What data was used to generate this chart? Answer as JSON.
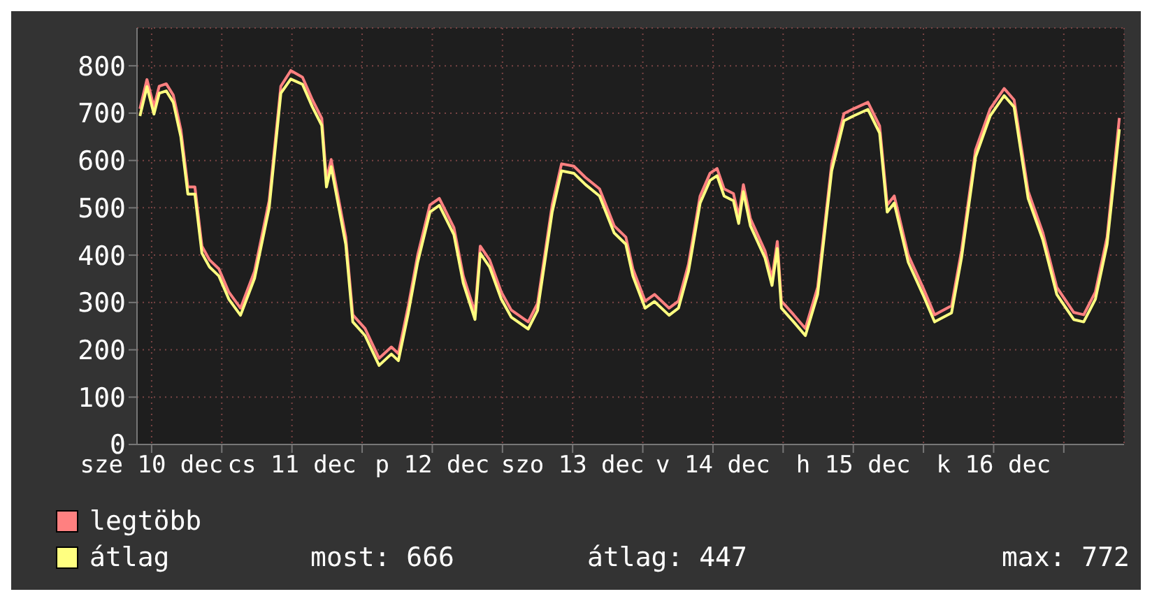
{
  "chart_data": {
    "type": "line",
    "x": [
      "--12-10T10:00",
      "--12-10T11:12",
      "--12-10T12:24",
      "--12-10T13:18",
      "--12-10T14:30",
      "--12-10T15:42",
      "--12-10T17:00",
      "--12-10T18:12",
      "--12-10T19:24",
      "--12-10T20:36",
      "--12-10T21:54",
      "--12-10T23:30",
      "--12-11T01:12",
      "--12-11T03:12",
      "--12-11T05:36",
      "--12-11T08:06",
      "--12-11T10:06",
      "--12-11T11:48",
      "--12-11T13:48",
      "--12-11T15:30",
      "--12-11T17:06",
      "--12-11T17:54",
      "--12-11T18:42",
      "--12-11T21:12",
      "--12-11T22:24",
      "--12-12T00:30",
      "--12-12T02:54",
      "--12-12T05:00",
      "--12-12T06:12",
      "--12-12T07:54",
      "--12-12T09:30",
      "--12-12T11:36",
      "--12-12T13:12",
      "--12-12T15:42",
      "--12-12T17:18",
      "--12-12T19:18",
      "--12-12T20:12",
      "--12-12T21:48",
      "--12-12T23:48",
      "--12-13T01:30",
      "--12-13T04:24",
      "--12-13T06:00",
      "--12-13T08:30",
      "--12-13T10:06",
      "--12-13T12:12",
      "--12-13T14:12",
      "--12-13T16:36",
      "--12-13T19:06",
      "--12-13T21:06",
      "--12-13T22:18",
      "--12-14T00:24",
      "--12-14T02:00",
      "--12-14T04:30",
      "--12-14T06:06",
      "--12-14T07:48",
      "--12-14T09:48",
      "--12-14T11:30",
      "--12-14T12:42",
      "--12-14T13:54",
      "--12-14T15:30",
      "--12-14T16:24",
      "--12-14T17:12",
      "--12-14T18:24",
      "--12-14T20:54",
      "--12-14T22:06",
      "--12-14T23:00",
      "--12-14T23:42",
      "--12-15T01:48",
      "--12-15T03:48",
      "--12-15T05:54",
      "--12-15T08:18",
      "--12-15T10:24",
      "--12-15T12:00",
      "--12-15T14:30",
      "--12-15T16:30",
      "--12-15T17:48",
      "--12-15T19:00",
      "--12-15T21:24",
      "--12-15T23:54",
      "--12-16T01:54",
      "--12-16T04:48",
      "--12-16T06:30",
      "--12-16T08:54",
      "--12-16T11:24",
      "--12-16T13:48",
      "--12-16T15:30",
      "--12-16T16:42",
      "--12-16T17:54",
      "--12-16T20:24",
      "--12-16T22:48",
      "--12-17T01:42",
      "--12-17T03:24",
      "--12-17T05:24",
      "--12-17T07:24",
      "--12-17T09:30"
    ],
    "series": [
      {
        "name": "legtöbb",
        "color": "#ff8080",
        "values": [
          709,
          771,
          713,
          757,
          762,
          738,
          665,
          544,
          544,
          419,
          390,
          371,
          322,
          288,
          366,
          515,
          757,
          790,
          776,
          728,
          689,
          559,
          602,
          438,
          274,
          245,
          182,
          206,
          192,
          293,
          400,
          506,
          520,
          458,
          356,
          279,
          419,
          390,
          322,
          284,
          259,
          298,
          506,
          593,
          588,
          564,
          540,
          462,
          438,
          371,
          303,
          317,
          288,
          303,
          380,
          525,
          573,
          583,
          540,
          530,
          482,
          549,
          477,
          409,
          351,
          429,
          303,
          274,
          245,
          332,
          593,
          699,
          709,
          723,
          673,
          506,
          525,
          400,
          332,
          274,
          293,
          409,
          622,
          709,
          752,
          728,
          631,
          535,
          448,
          332,
          279,
          274,
          322,
          438,
          690
        ]
      },
      {
        "name": "átlag",
        "color": "#ffff80",
        "values": [
          694,
          756,
          698,
          742,
          747,
          723,
          650,
          529,
          529,
          404,
          375,
          356,
          307,
          273,
          351,
          500,
          742,
          772,
          761,
          713,
          674,
          544,
          587,
          423,
          259,
          230,
          167,
          191,
          177,
          278,
          385,
          491,
          505,
          443,
          341,
          264,
          404,
          375,
          307,
          269,
          244,
          283,
          491,
          578,
          573,
          549,
          525,
          447,
          423,
          356,
          288,
          302,
          273,
          288,
          365,
          510,
          558,
          568,
          525,
          515,
          467,
          534,
          462,
          394,
          336,
          414,
          288,
          259,
          230,
          317,
          578,
          684,
          694,
          708,
          658,
          491,
          510,
          385,
          317,
          259,
          278,
          394,
          607,
          694,
          737,
          713,
          616,
          520,
          433,
          317,
          264,
          259,
          307,
          423,
          666
        ]
      }
    ],
    "xlim": [
      "--12-10T09:30",
      "--12-17T10:18"
    ],
    "xticks": [
      {
        "value": "--12-10T12:00",
        "label": "sze 10 dec"
      },
      {
        "value": "--12-11T00:00",
        "label": null
      },
      {
        "value": "--12-11T12:00",
        "label": "cs 11 dec"
      },
      {
        "value": "--12-12T00:00",
        "label": null
      },
      {
        "value": "--12-12T12:00",
        "label": "p 12 dec"
      },
      {
        "value": "--12-13T00:00",
        "label": null
      },
      {
        "value": "--12-13T12:00",
        "label": "szo 13 dec"
      },
      {
        "value": "--12-14T00:00",
        "label": null
      },
      {
        "value": "--12-14T12:00",
        "label": "v 14 dec"
      },
      {
        "value": "--12-15T00:00",
        "label": null
      },
      {
        "value": "--12-15T12:00",
        "label": "h 15 dec"
      },
      {
        "value": "--12-16T00:00",
        "label": null
      },
      {
        "value": "--12-16T12:00",
        "label": "k 16 dec"
      },
      {
        "value": "--12-17T00:00",
        "label": null
      }
    ],
    "ylim": [
      0,
      880
    ],
    "yticks": [
      0,
      100,
      200,
      300,
      400,
      500,
      600,
      700,
      800
    ],
    "grid": true,
    "legend": "bottom left",
    "marker": "none",
    "line_style": "solid",
    "annotations": [
      "most: 666",
      "átlag: 447",
      "max: 772"
    ]
  }
}
